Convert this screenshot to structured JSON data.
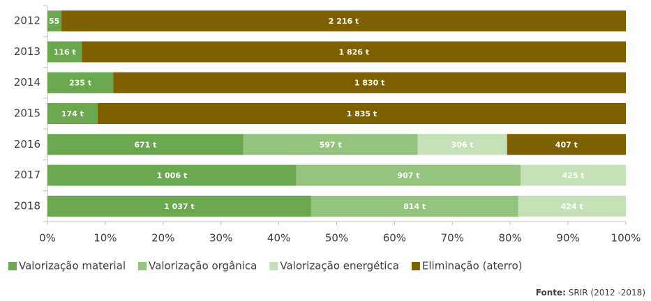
{
  "chart_data": {
    "type": "bar",
    "orientation": "horizontal",
    "stacked": "percent",
    "categories": [
      "2012",
      "2013",
      "2014",
      "2015",
      "2016",
      "2017",
      "2018"
    ],
    "series": [
      {
        "name": "Valorização material",
        "color": "#6aa84f",
        "values": [
          55,
          116,
          235,
          174,
          671,
          1006,
          1037
        ],
        "value_labels": [
          "55 t",
          "116 t",
          "235 t",
          "174 t",
          "671 t",
          "1 006 t",
          "1 037 t"
        ]
      },
      {
        "name": "Valorização orgânica",
        "color": "#93c47d",
        "values": [
          null,
          null,
          null,
          null,
          597,
          907,
          814
        ],
        "value_labels": [
          null,
          null,
          null,
          null,
          "597 t",
          "907 t",
          "814 t"
        ]
      },
      {
        "name": "Valorização energética",
        "color": "#c6e0b8",
        "values": [
          null,
          null,
          null,
          null,
          306,
          425,
          424
        ],
        "value_labels": [
          null,
          null,
          null,
          null,
          "306 t",
          "425 t",
          "424 t"
        ]
      },
      {
        "name": "Eliminação (aterro)",
        "color": "#7f6000",
        "values": [
          2216,
          1826,
          1830,
          1835,
          407,
          null,
          null
        ],
        "value_labels": [
          "2 216 t",
          "1 826 t",
          "1 830 t",
          "1 835 t",
          "407 t",
          null,
          null
        ]
      }
    ],
    "xlim": [
      0,
      100
    ],
    "xticks": [
      {
        "value": 0,
        "label": "0%"
      },
      {
        "value": 10,
        "label": "10%"
      },
      {
        "value": 20,
        "label": "20%"
      },
      {
        "value": 30,
        "label": "30%"
      },
      {
        "value": 40,
        "label": "40%"
      },
      {
        "value": 50,
        "label": "50%"
      },
      {
        "value": 60,
        "label": "60%"
      },
      {
        "value": 70,
        "label": "70%"
      },
      {
        "value": 80,
        "label": "80%"
      },
      {
        "value": 90,
        "label": "90%"
      },
      {
        "value": 100,
        "label": "100%"
      }
    ],
    "legend": "bottom",
    "source": {
      "label": "Fonte:",
      "text": "SRIR (2012 -2018)"
    }
  }
}
